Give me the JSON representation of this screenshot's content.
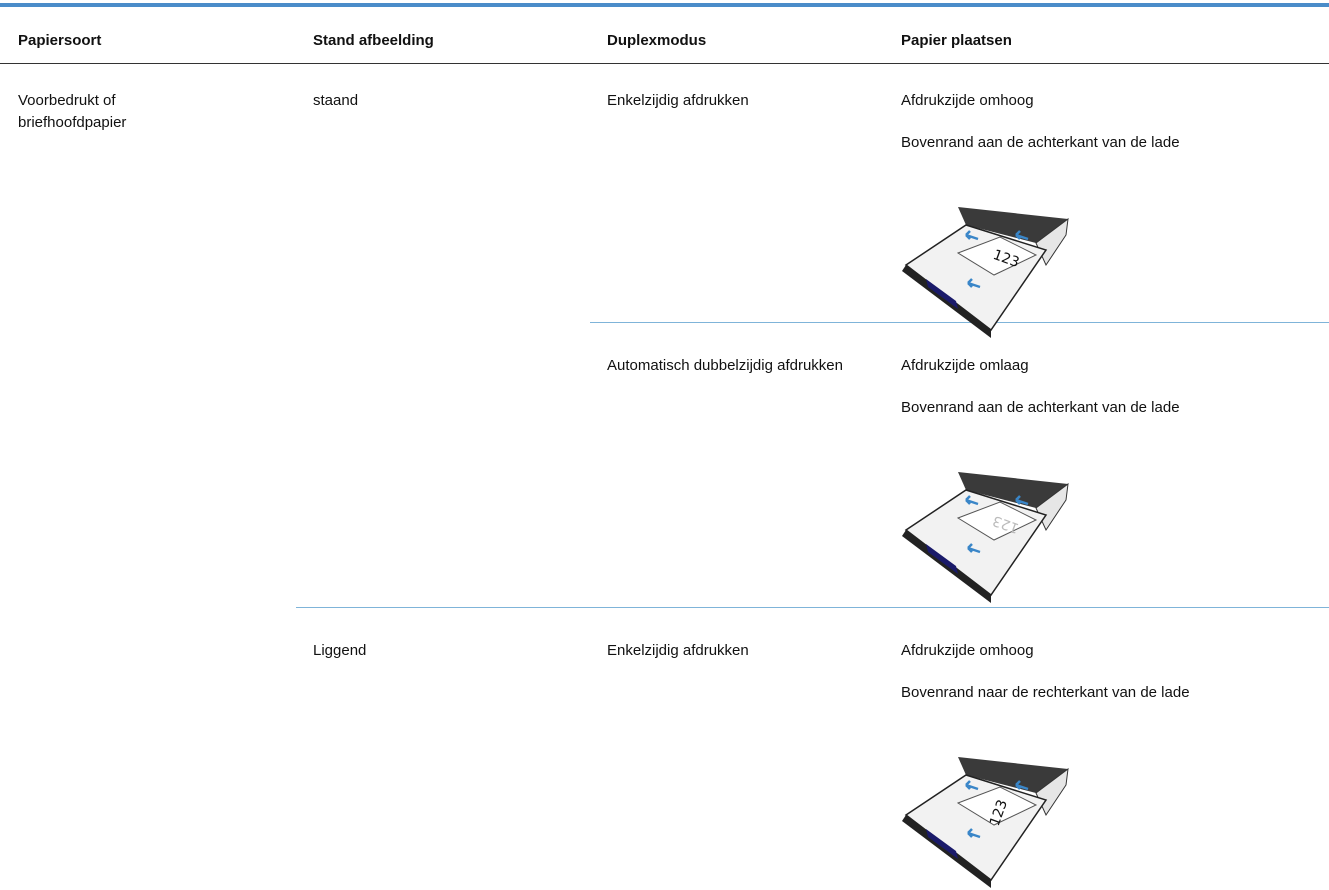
{
  "table": {
    "headers": [
      "Papiersoort",
      "Stand afbeelding",
      "Duplexmodus",
      "Papier plaatsen"
    ],
    "rows": [
      {
        "paper_type": "Voorbedrukt of briefhoofdpapier",
        "orientation": "staand",
        "duplex": "Enkelzijdig afdrukken",
        "instructions": [
          "Afdrukzijde omhoog",
          "Bovenrand aan de achterkant van de lade"
        ],
        "tray_label": "123"
      },
      {
        "duplex": "Automatisch dubbelzijdig afdrukken",
        "instructions": [
          "Afdrukzijde omlaag",
          "Bovenrand aan de achterkant van de lade"
        ],
        "tray_label": "123"
      },
      {
        "orientation": "Liggend",
        "duplex": "Enkelzijdig afdrukken",
        "instructions": [
          "Afdrukzijde omhoog",
          "Bovenrand naar de rechterkant van de lade"
        ],
        "tray_label": "123"
      }
    ]
  }
}
